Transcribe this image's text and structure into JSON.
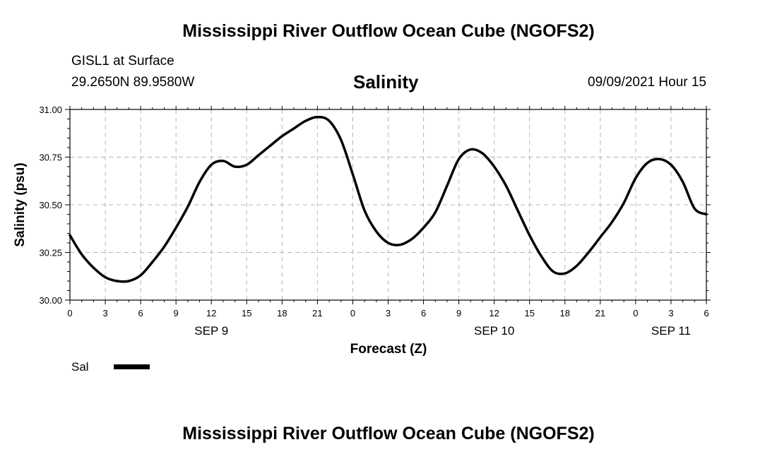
{
  "page": {
    "title_top": "Mississippi River Outflow Ocean Cube (NGOFS2)",
    "title_bottom": "Mississippi River Outflow Ocean Cube (NGOFS2)",
    "station": "GISL1 at Surface",
    "location": "29.2650N  89.9580W",
    "chart_title": "Salinity",
    "timestamp": "09/09/2021 Hour 15"
  },
  "chart_data": {
    "type": "line",
    "title": "Salinity",
    "xlabel": "Forecast (Z)",
    "ylabel": "Salinity (psu)",
    "xlim": [
      0,
      54
    ],
    "ylim": [
      30.0,
      31.0
    ],
    "grid": true,
    "x_tick_values": [
      0,
      3,
      6,
      9,
      12,
      15,
      18,
      21,
      24,
      27,
      30,
      33,
      36,
      39,
      42,
      45,
      48,
      51,
      54
    ],
    "x_tick_labels": [
      "0",
      "3",
      "6",
      "9",
      "12",
      "15",
      "18",
      "21",
      "0",
      "3",
      "6",
      "9",
      "12",
      "15",
      "18",
      "21",
      "0",
      "3",
      "6"
    ],
    "y_tick_values": [
      30.0,
      30.25,
      30.5,
      30.75,
      31.0
    ],
    "y_tick_labels": [
      "30.00",
      "30.25",
      "30.50",
      "30.75",
      "31.00"
    ],
    "date_labels": [
      {
        "label": "SEP 9",
        "x": 12
      },
      {
        "label": "SEP 10",
        "x": 36
      },
      {
        "label": "SEP 11",
        "x": 51
      }
    ],
    "legend": {
      "placement": "bottom-left",
      "label": "Sal"
    },
    "series": [
      {
        "name": "Sal",
        "x": [
          0,
          1,
          2,
          3,
          4,
          5,
          6,
          7,
          8,
          9,
          10,
          11,
          12,
          13,
          14,
          15,
          16,
          17,
          18,
          19,
          20,
          21,
          22,
          23,
          24,
          25,
          26,
          27,
          28,
          29,
          30,
          31,
          32,
          33,
          34,
          35,
          36,
          37,
          38,
          39,
          40,
          41,
          42,
          43,
          44,
          45,
          46,
          47,
          48,
          49,
          50,
          51,
          52,
          53,
          54
        ],
        "values": [
          30.34,
          30.24,
          30.17,
          30.12,
          30.1,
          30.1,
          30.13,
          30.2,
          30.28,
          30.38,
          30.49,
          30.62,
          30.71,
          30.73,
          30.7,
          30.71,
          30.76,
          30.81,
          30.86,
          30.9,
          30.94,
          30.96,
          30.94,
          30.84,
          30.66,
          30.47,
          30.36,
          30.3,
          30.29,
          30.32,
          30.38,
          30.46,
          30.6,
          30.74,
          30.79,
          30.77,
          30.7,
          30.6,
          30.47,
          30.34,
          30.23,
          30.15,
          30.14,
          30.18,
          30.25,
          30.33,
          30.41,
          30.51,
          30.64,
          30.72,
          30.74,
          30.71,
          30.62,
          30.48,
          30.45
        ]
      }
    ]
  }
}
